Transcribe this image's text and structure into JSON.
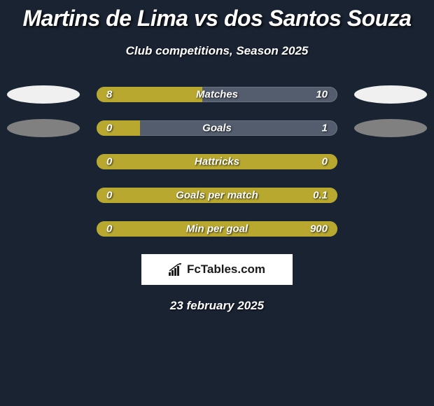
{
  "title": "Martins de Lima vs dos Santos Souza",
  "subtitle": "Club competitions, Season 2025",
  "date": "23 february 2025",
  "logo": {
    "text": "FcTables.com"
  },
  "colors": {
    "background": "#1a2332",
    "bar_bg": "#535d6e",
    "bar_fill": "#b8a82f",
    "ellipse_white": "#f0f0f0",
    "ellipse_gray": "#808080",
    "text": "#ffffff"
  },
  "stats": [
    {
      "label": "Matches",
      "left_value": "8",
      "right_value": "10",
      "fill_pct": 44,
      "left_ellipse": "#f0f0f0",
      "right_ellipse": "#f0f0f0"
    },
    {
      "label": "Goals",
      "left_value": "0",
      "right_value": "1",
      "fill_pct": 18,
      "left_ellipse": "#808080",
      "right_ellipse": "#808080"
    },
    {
      "label": "Hattricks",
      "left_value": "0",
      "right_value": "0",
      "fill_pct": 100,
      "left_ellipse": null,
      "right_ellipse": null
    },
    {
      "label": "Goals per match",
      "left_value": "0",
      "right_value": "0.1",
      "fill_pct": 100,
      "left_ellipse": null,
      "right_ellipse": null
    },
    {
      "label": "Min per goal",
      "left_value": "0",
      "right_value": "900",
      "fill_pct": 100,
      "left_ellipse": null,
      "right_ellipse": null
    }
  ]
}
